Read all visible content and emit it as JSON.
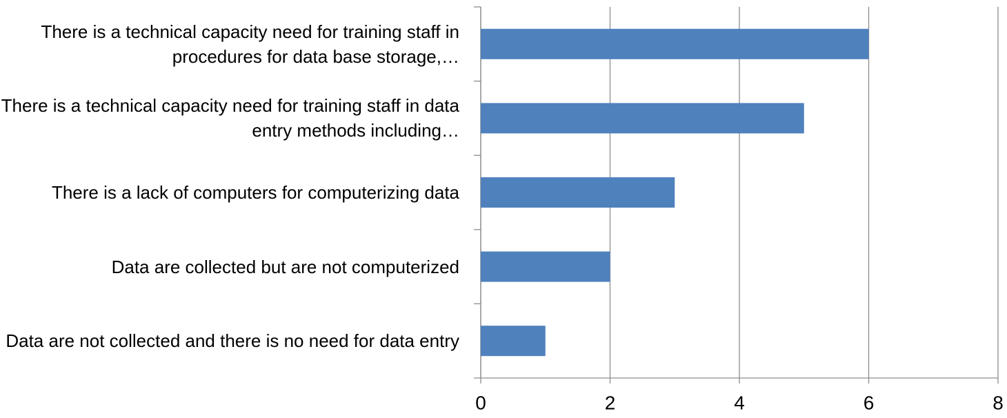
{
  "chart_data": {
    "type": "bar",
    "orientation": "horizontal",
    "categories": [
      "There is a technical capacity need for training staff in procedures for data base storage,…",
      "There is a technical capacity need for training staff in data entry methods including…",
      "There is a lack of computers for computerizing data",
      "Data are collected but are not computerized",
      "Data are not collected and there is no need for data entry"
    ],
    "values": [
      6,
      5,
      3,
      2,
      1
    ],
    "color": "#4f81bd",
    "xlim": [
      0,
      8
    ],
    "xticks": [
      0,
      2,
      4,
      6,
      8
    ],
    "grid": true
  }
}
